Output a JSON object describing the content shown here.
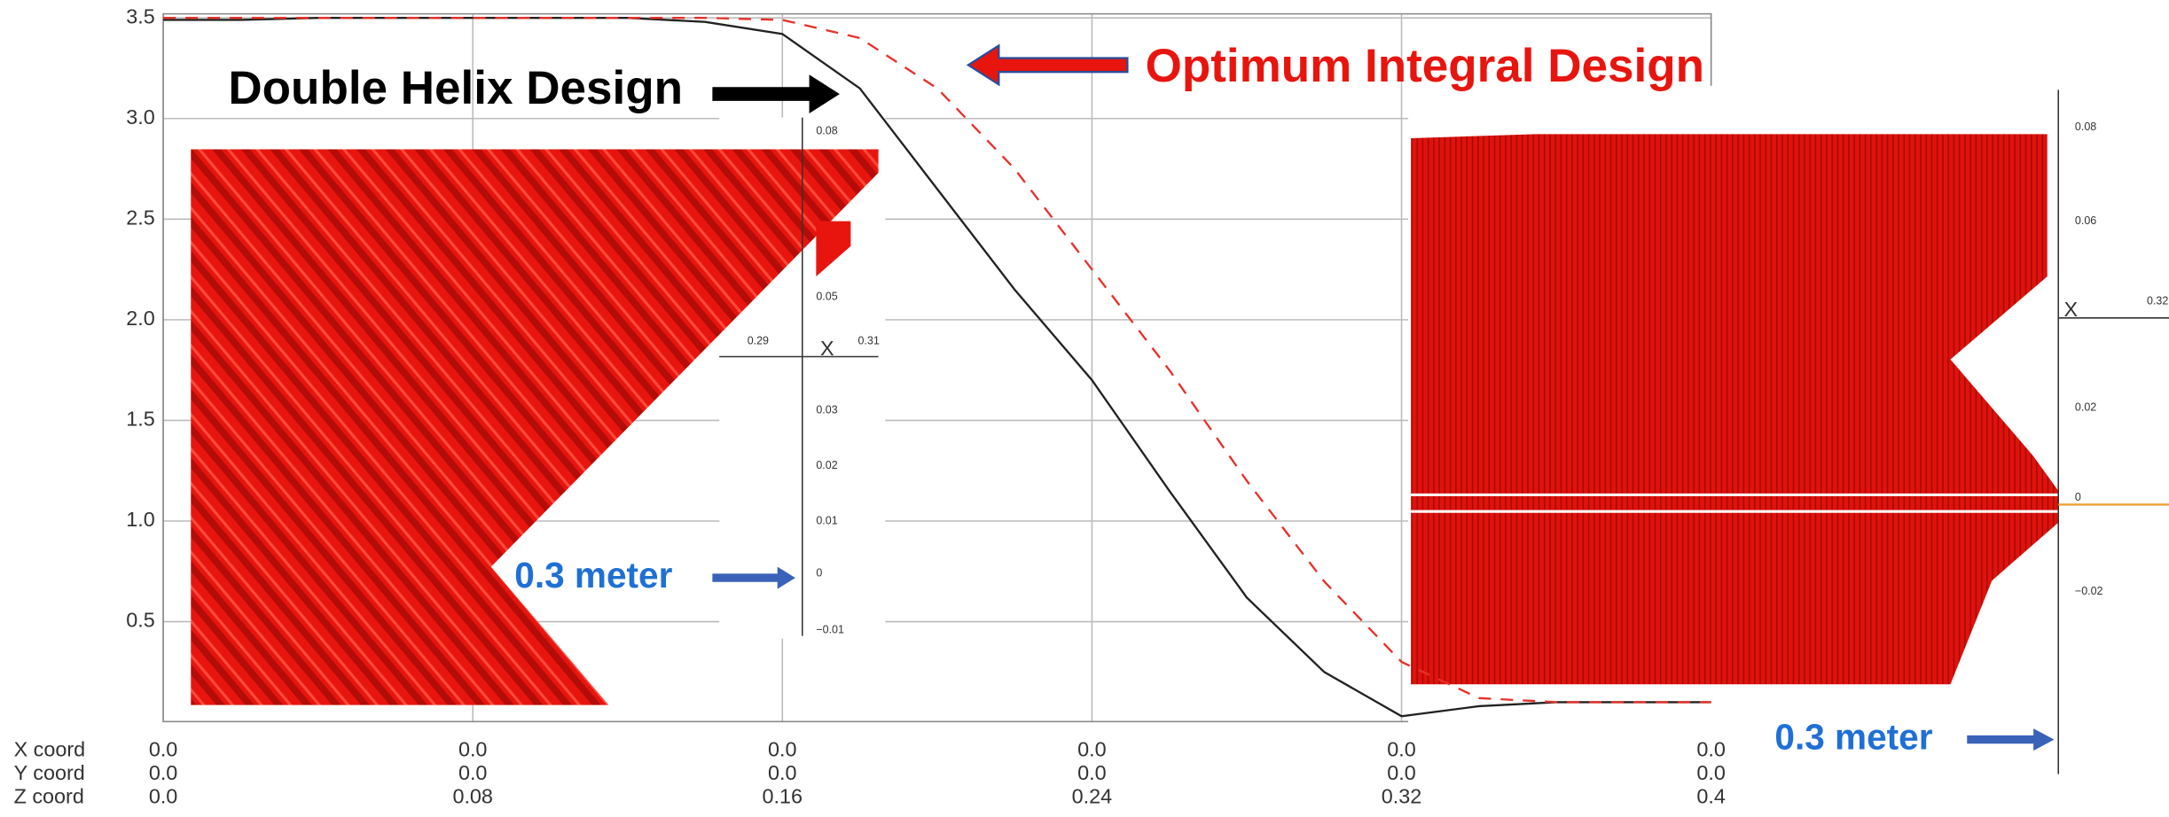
{
  "chart_data": {
    "type": "line",
    "x": [
      0,
      0.02,
      0.04,
      0.06,
      0.08,
      0.1,
      0.12,
      0.14,
      0.16,
      0.18,
      0.2,
      0.22,
      0.24,
      0.26,
      0.28,
      0.3,
      0.32,
      0.34,
      0.36,
      0.38,
      0.4
    ],
    "series": [
      {
        "name": "Double Helix Design",
        "color": "#222222",
        "dash": false,
        "values": [
          3.49,
          3.49,
          3.5,
          3.5,
          3.5,
          3.5,
          3.5,
          3.48,
          3.42,
          3.15,
          2.65,
          2.15,
          1.7,
          1.15,
          0.62,
          0.25,
          0.03,
          0.08,
          0.1,
          0.1,
          0.1
        ]
      },
      {
        "name": "Optimum Integral Design",
        "color": "#e8302a",
        "dash": true,
        "values": [
          3.5,
          3.5,
          3.5,
          3.5,
          3.5,
          3.5,
          3.5,
          3.5,
          3.49,
          3.4,
          3.15,
          2.75,
          2.25,
          1.75,
          1.2,
          0.7,
          0.3,
          0.12,
          0.1,
          0.1,
          0.1
        ]
      }
    ],
    "xlim": [
      0,
      0.4
    ],
    "xticks": [
      {
        "value": 0,
        "label": "0.0"
      },
      0.08,
      0.16,
      0.24,
      0.32,
      0.4
    ],
    "xlabel": "Z coord",
    "coord_rows": [
      {
        "name": "X coord",
        "ticks": [
          "0.0",
          "0.0",
          "0.0",
          "0.0",
          "0.0",
          "0.0"
        ]
      },
      {
        "name": "Y coord",
        "ticks": [
          "0.0",
          "0.0",
          "0.0",
          "0.0",
          "0.0",
          "0.0"
        ]
      }
    ],
    "ylim": [
      0,
      3.52
    ],
    "yticks": [
      0.5,
      {
        "value": 1,
        "label": "1.0"
      },
      1.5,
      {
        "value": 2,
        "label": "2.0"
      },
      2.5,
      {
        "value": 3,
        "label": "3.0"
      },
      3.5
    ],
    "grid": true,
    "annotations": {
      "scale_left": "0.3 meter",
      "scale_right": "0.3 meter"
    }
  },
  "insets": {
    "left": {
      "labels": [
        "0.08",
        "0.05",
        "0.29",
        "0.31",
        "X",
        "0.03",
        "0.02",
        "0.01",
        "0",
        "−0.01"
      ]
    },
    "right": {
      "labels": [
        "0.08",
        "0.06",
        "X",
        "0.32",
        "0.02",
        "0",
        "−0.02"
      ]
    }
  }
}
